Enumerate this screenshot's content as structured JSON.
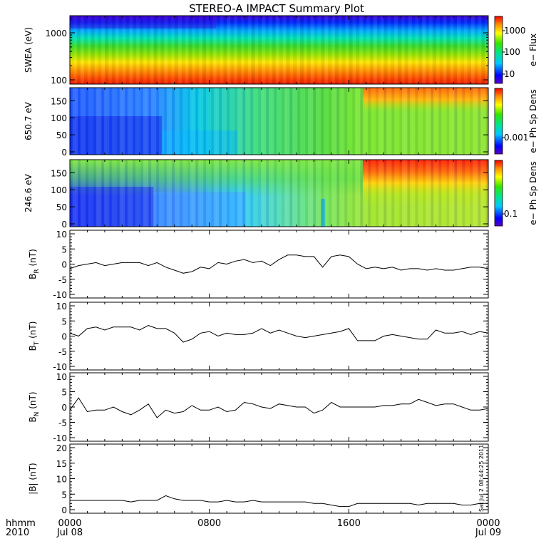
{
  "title": "STEREO-A IMPACT Summary Plot",
  "chart_data": [
    {
      "type": "heatmap",
      "ylabel": "SWEA (eV)",
      "y_scale": "log",
      "ylim": [
        95,
        2000
      ],
      "y_ticks": [
        "100",
        "1000"
      ],
      "colorbar": {
        "label": "e− Flux",
        "scale": "log",
        "ticks": [
          "10",
          "100",
          "1000"
        ]
      },
      "description_bands": [
        {
          "energy_range": "100-180 eV",
          "color": "red/orange"
        },
        {
          "energy_range": "180-400 eV",
          "color": "yellow"
        },
        {
          "energy_range": "400-900 eV",
          "color": "green"
        },
        {
          "energy_range": "900-1500 eV",
          "color": "cyan/blue"
        },
        {
          "energy_range": "1500-2000 eV",
          "color": "blue/violet"
        }
      ]
    },
    {
      "type": "heatmap",
      "ylabel": "650.7 eV",
      "ylim": [
        0,
        180
      ],
      "y_ticks": [
        "0",
        "50",
        "100",
        "150"
      ],
      "colorbar": {
        "label": "e− Ph Sp Dens",
        "ticks": [
          "0.001"
        ]
      }
    },
    {
      "type": "heatmap",
      "ylabel": "246.6 eV",
      "ylim": [
        0,
        180
      ],
      "y_ticks": [
        "0",
        "50",
        "100",
        "150"
      ],
      "colorbar": {
        "label": "e− Ph Sp Dens",
        "ticks": [
          "0.1"
        ]
      }
    },
    {
      "type": "line",
      "ylabel_main": "B",
      "ylabel_sub": "R",
      "ylabel_unit": " (nT)",
      "ylim": [
        -10,
        10
      ],
      "y_ticks": [
        -10,
        -5,
        0,
        5,
        10
      ],
      "x_hours": [
        0,
        0.5,
        1,
        1.5,
        2,
        2.5,
        3,
        3.5,
        4,
        4.5,
        5,
        5.5,
        6,
        6.5,
        7,
        7.5,
        8,
        8.5,
        9,
        9.5,
        10,
        10.5,
        11,
        11.5,
        12,
        12.5,
        13,
        13.5,
        14,
        14.5,
        15,
        15.5,
        16,
        16.5,
        17,
        17.5,
        18,
        18.5,
        19,
        19.5,
        20,
        20.5,
        21,
        21.5,
        22,
        22.5,
        23,
        23.5,
        24
      ],
      "values": [
        -1.5,
        -0.5,
        0,
        0.5,
        -0.5,
        0,
        0.5,
        0.5,
        0.5,
        -0.5,
        0.5,
        -1,
        -2,
        -3,
        -2.5,
        -1,
        -1.5,
        0.5,
        0,
        1,
        1.5,
        0.5,
        1,
        -0.5,
        1.5,
        3,
        3,
        2.5,
        2.5,
        -1,
        2.5,
        3,
        2.5,
        0,
        -1.5,
        -1,
        -1.5,
        -1,
        -2,
        -1.5,
        -1.5,
        -2,
        -1.5,
        -2,
        -2,
        -1.5,
        -1,
        -1,
        -1.5
      ]
    },
    {
      "type": "line",
      "ylabel_main": "B",
      "ylabel_sub": "T",
      "ylabel_unit": " (nT)",
      "ylim": [
        -10,
        10
      ],
      "y_ticks": [
        -10,
        -5,
        0,
        5,
        10
      ],
      "x_hours": [
        0,
        0.5,
        1,
        1.5,
        2,
        2.5,
        3,
        3.5,
        4,
        4.5,
        5,
        5.5,
        6,
        6.5,
        7,
        7.5,
        8,
        8.5,
        9,
        9.5,
        10,
        10.5,
        11,
        11.5,
        12,
        12.5,
        13,
        13.5,
        14,
        14.5,
        15,
        15.5,
        16,
        16.5,
        17,
        17.5,
        18,
        18.5,
        19,
        19.5,
        20,
        20.5,
        21,
        21.5,
        22,
        22.5,
        23,
        23.5,
        24
      ],
      "values": [
        1,
        0,
        2.5,
        3,
        2,
        3,
        3,
        3,
        2,
        3.5,
        2.5,
        2.5,
        1,
        -2,
        -1,
        1,
        1.5,
        0,
        1,
        0.5,
        0.5,
        1,
        2.5,
        1,
        2,
        1,
        0,
        -0.5,
        0,
        0.5,
        1,
        1.5,
        2.5,
        -1.5,
        -1.5,
        -1.5,
        0,
        0.5,
        0,
        -0.5,
        -1,
        -1,
        2,
        1,
        1,
        1.5,
        0.5,
        1.5,
        1
      ]
    },
    {
      "type": "line",
      "ylabel_main": "B",
      "ylabel_sub": "N",
      "ylabel_unit": " (nT)",
      "ylim": [
        -10,
        10
      ],
      "y_ticks": [
        -10,
        -5,
        0,
        5,
        10
      ],
      "x_hours": [
        0,
        0.5,
        1,
        1.5,
        2,
        2.5,
        3,
        3.5,
        4,
        4.5,
        5,
        5.5,
        6,
        6.5,
        7,
        7.5,
        8,
        8.5,
        9,
        9.5,
        10,
        10.5,
        11,
        11.5,
        12,
        12.5,
        13,
        13.5,
        14,
        14.5,
        15,
        15.5,
        16,
        16.5,
        17,
        17.5,
        18,
        18.5,
        19,
        19.5,
        20,
        20.5,
        21,
        21.5,
        22,
        22.5,
        23,
        23.5,
        24
      ],
      "values": [
        -1,
        3,
        -1.5,
        -1,
        -1,
        0,
        -1.5,
        -2.5,
        -1,
        1,
        -3.5,
        -1,
        -2,
        -1.5,
        0.5,
        -1,
        -1,
        0,
        -1.5,
        -1,
        1.5,
        1,
        0,
        -0.5,
        1,
        0.5,
        0,
        0,
        -2,
        -1,
        1.5,
        0,
        0,
        0,
        0,
        0,
        0.5,
        0.5,
        1,
        1,
        2.5,
        1.5,
        0.5,
        1,
        1,
        0,
        -1,
        -1,
        -0.5
      ]
    },
    {
      "type": "line",
      "ylabel_main": "|B|",
      "ylabel_sub": "",
      "ylabel_unit": " (nT)",
      "ylim": [
        0,
        20
      ],
      "y_ticks": [
        0,
        5,
        10,
        15,
        20
      ],
      "x_hours": [
        0,
        0.5,
        1,
        1.5,
        2,
        2.5,
        3,
        3.5,
        4,
        4.5,
        5,
        5.5,
        6,
        6.5,
        7,
        7.5,
        8,
        8.5,
        9,
        9.5,
        10,
        10.5,
        11,
        11.5,
        12,
        12.5,
        13,
        13.5,
        14,
        14.5,
        15,
        15.5,
        16,
        16.5,
        17,
        17.5,
        18,
        18.5,
        19,
        19.5,
        20,
        20.5,
        21,
        21.5,
        22,
        22.5,
        23,
        23.5,
        24
      ],
      "values": [
        3,
        3,
        3,
        3,
        3,
        3,
        3,
        2.5,
        3,
        3,
        3,
        4.5,
        3.5,
        3,
        3,
        3,
        2.5,
        2.5,
        3,
        2.5,
        2.5,
        3,
        2.5,
        2.5,
        2.5,
        2.5,
        2.5,
        2.5,
        2,
        2,
        1.5,
        1,
        1,
        2,
        2,
        2,
        2,
        2,
        2,
        2,
        1.5,
        2,
        2,
        2,
        2,
        1.5,
        1.5,
        2,
        2
      ]
    }
  ],
  "x_axis": {
    "tick_labels": [
      "0000",
      "0800",
      "1600",
      "0000"
    ],
    "date_labels": [
      "Jul 08",
      "",
      "",
      "Jul 09"
    ],
    "corner_label_1": "hhmm",
    "corner_label_2": "2010"
  },
  "timestamp": "Sat Jul  2 08:44:25 2011"
}
